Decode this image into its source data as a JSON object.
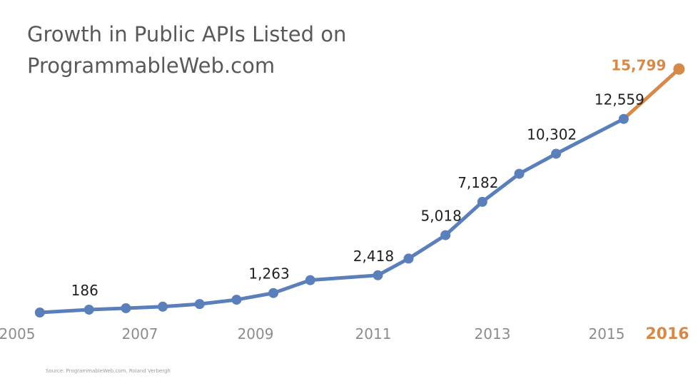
{
  "chart_data": {
    "type": "line",
    "title": [
      "Growth in Public APIs Listed on",
      "ProgrammableWeb.com"
    ],
    "x_ticks": [
      "2005",
      "2007",
      "2009",
      "2011",
      "2013",
      "2015",
      "2016"
    ],
    "highlight_tick": "2016",
    "xlim": [
      2005.2,
      2016.0
    ],
    "ylim": [
      0,
      17500
    ],
    "series": [
      {
        "color": "#5a7fba",
        "points": [
          {
            "x": 2005.5,
            "y": 0,
            "label": ""
          },
          {
            "x": 2006.3,
            "y": 186,
            "label": "186"
          },
          {
            "x": 2006.9,
            "y": 280,
            "label": ""
          },
          {
            "x": 2007.5,
            "y": 380,
            "label": ""
          },
          {
            "x": 2008.1,
            "y": 550,
            "label": ""
          },
          {
            "x": 2008.7,
            "y": 830,
            "label": ""
          },
          {
            "x": 2009.3,
            "y": 1263,
            "label": "1,263"
          },
          {
            "x": 2009.9,
            "y": 2100,
            "label": ""
          },
          {
            "x": 2011.0,
            "y": 2418,
            "label": "2,418"
          },
          {
            "x": 2011.5,
            "y": 3500,
            "label": ""
          },
          {
            "x": 2012.1,
            "y": 5018,
            "label": "5,018"
          },
          {
            "x": 2012.7,
            "y": 7182,
            "label": "7,182"
          },
          {
            "x": 2013.3,
            "y": 9000,
            "label": ""
          },
          {
            "x": 2013.9,
            "y": 10302,
            "label": "10,302"
          },
          {
            "x": 2015.0,
            "y": 12559,
            "label": "12,559"
          }
        ]
      },
      {
        "color": "#d68a4a",
        "points": [
          {
            "x": 2015.0,
            "y": 12559,
            "label": ""
          },
          {
            "x": 2015.9,
            "y": 15799,
            "label": "15,799"
          }
        ]
      }
    ]
  },
  "source": "Source: ProgrammableWeb.com, Roland Verbergh"
}
